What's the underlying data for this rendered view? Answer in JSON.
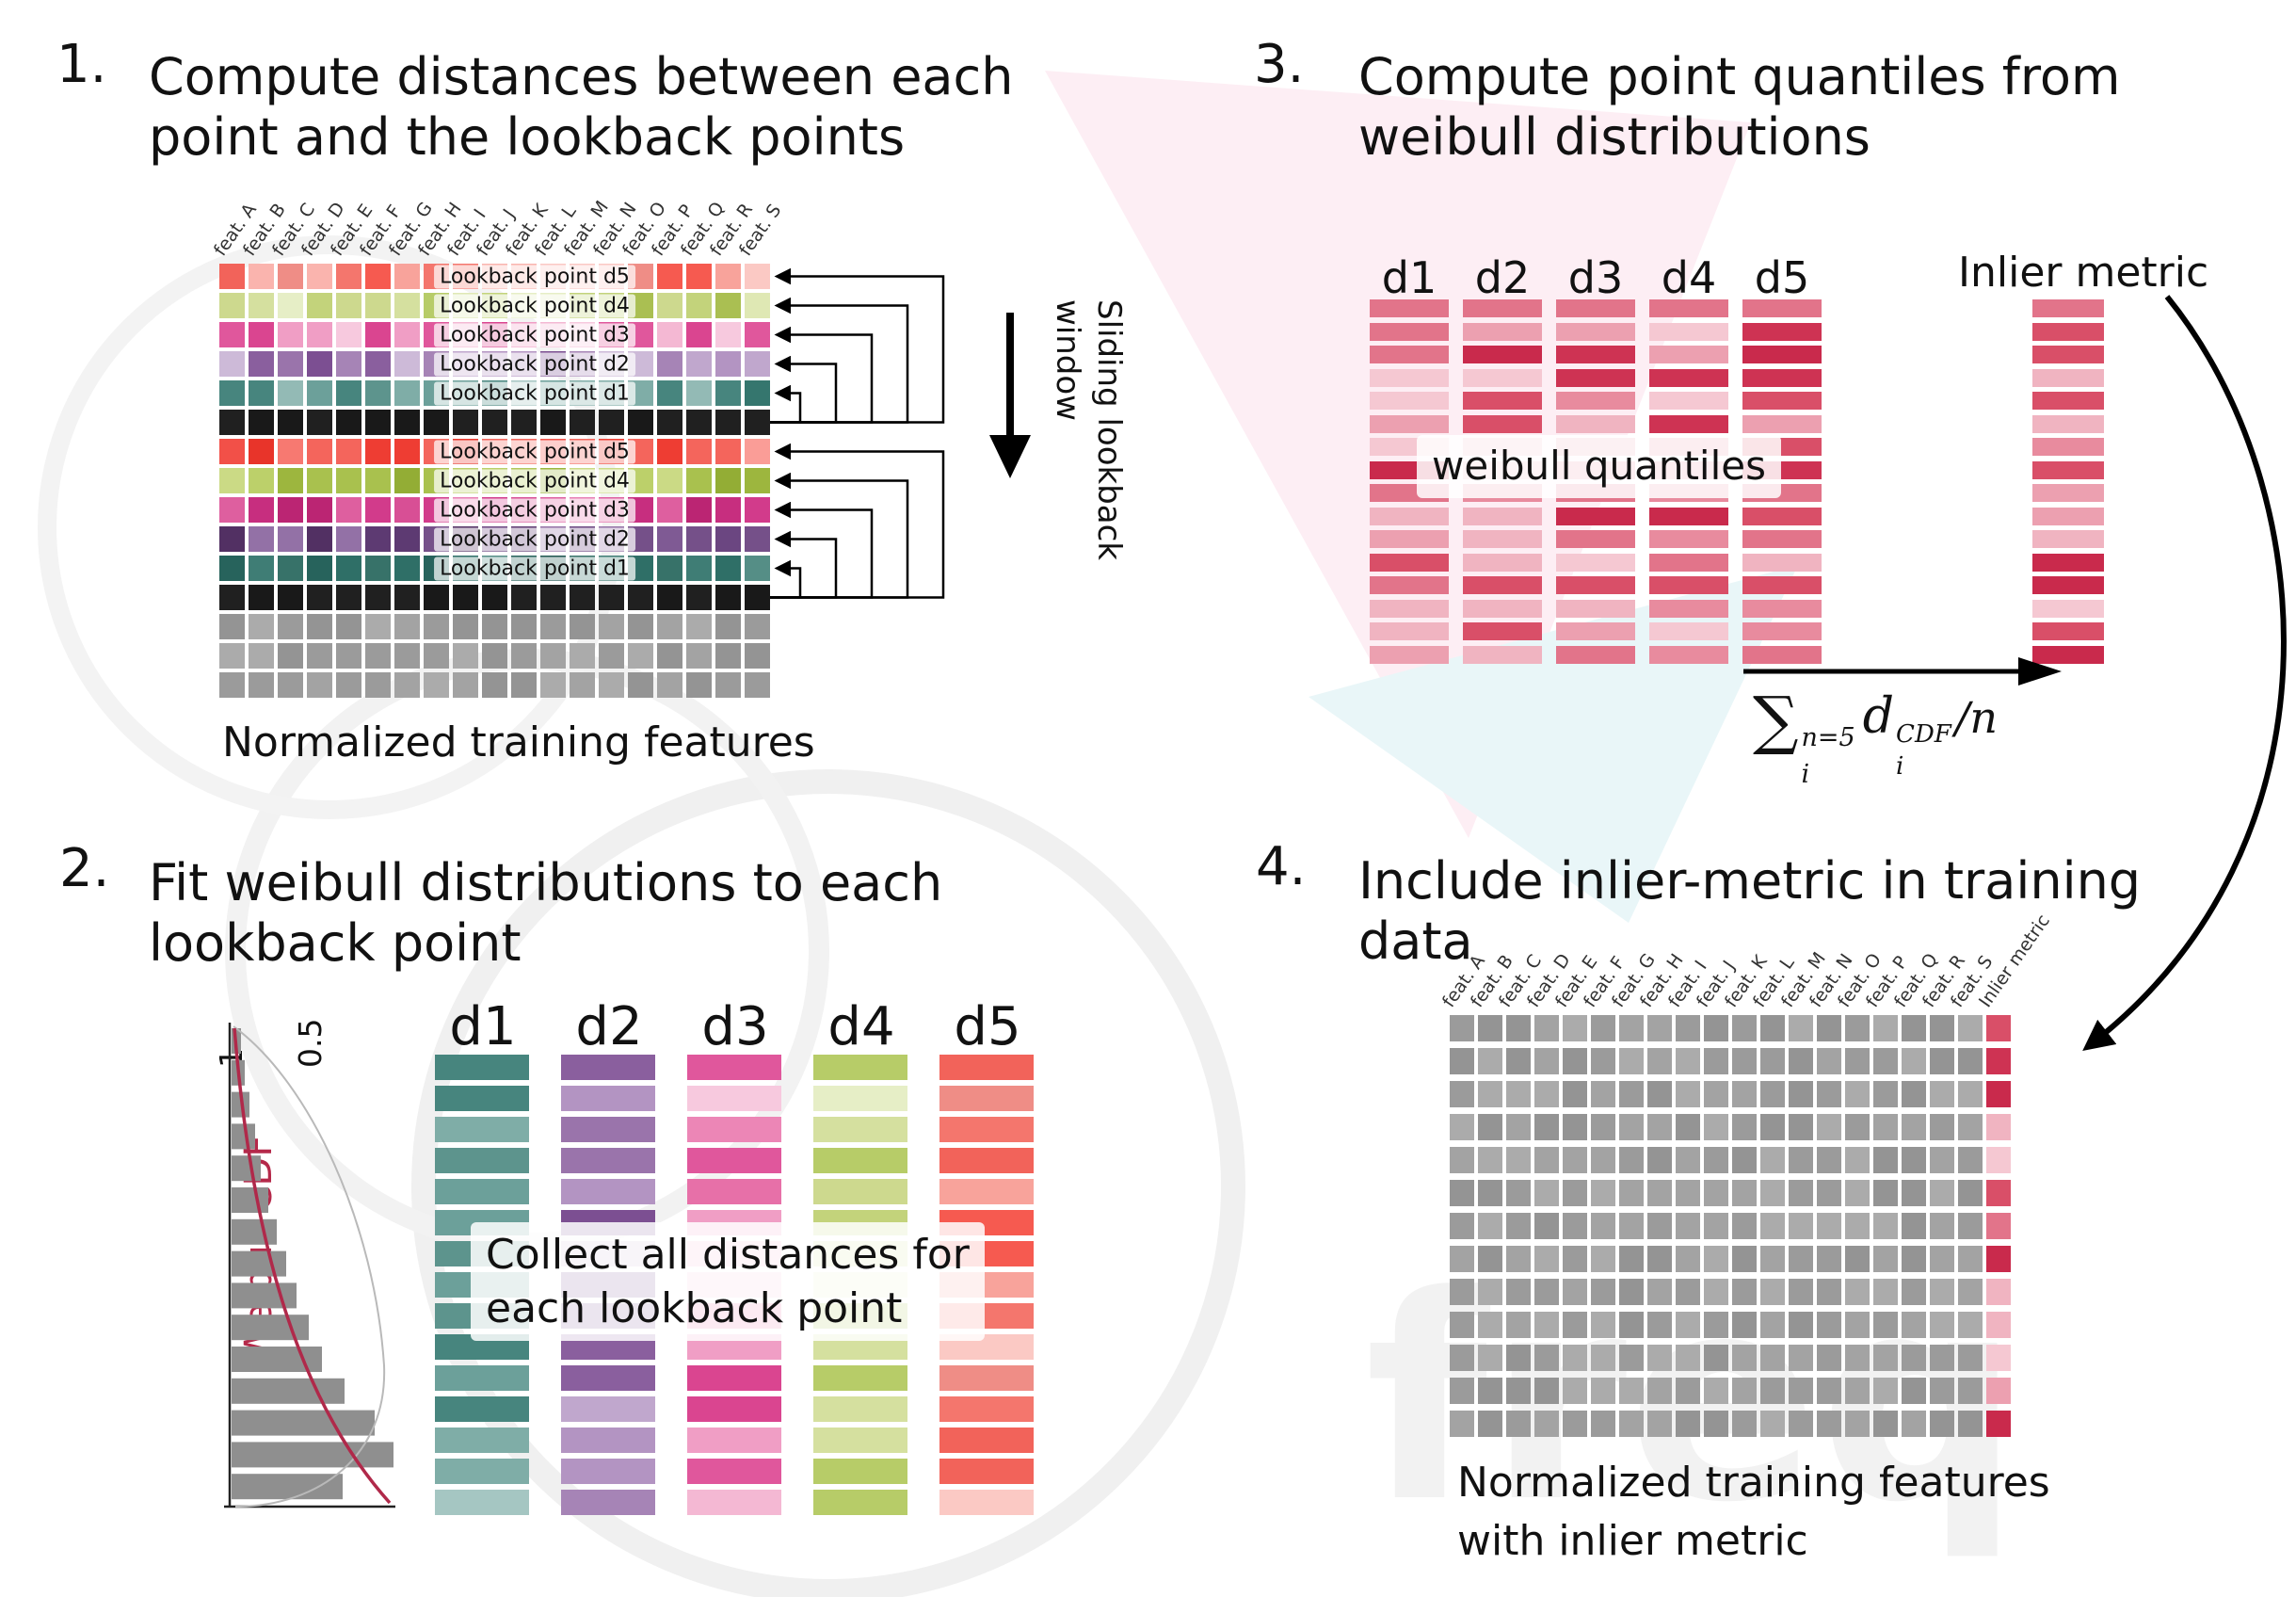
{
  "features": [
    "feat. A",
    "feat. B",
    "feat. C",
    "feat. D",
    "feat. E",
    "feat. F",
    "feat. G",
    "feat. H",
    "feat. I",
    "feat. J",
    "feat. K",
    "feat. L",
    "feat. M",
    "feat. N",
    "feat. O",
    "feat. P",
    "feat. Q",
    "feat. R",
    "feat. S"
  ],
  "d_labels": [
    "d1",
    "d2",
    "d3",
    "d4",
    "d5"
  ],
  "palettes": {
    "d1": [
      "#5d948d",
      "#47857e",
      "#7fada7",
      "#a5c6c2",
      "#35766e",
      "#6ca09a",
      "#93bab5"
    ],
    "d2": [
      "#9a74ab",
      "#8a5f9e",
      "#b394c2",
      "#cdbad8",
      "#7c4f92",
      "#a684b6",
      "#c0a7cd"
    ],
    "d3": [
      "#e770a8",
      "#e0579c",
      "#f09ec5",
      "#f7c9de",
      "#da4590",
      "#ec86b6",
      "#f4b8d3"
    ],
    "d4": [
      "#c3d37b",
      "#b7cc68",
      "#d5e09f",
      "#e6eec6",
      "#aabf52",
      "#cdd98e",
      "#dfe8b4"
    ],
    "d5": [
      "#f4766d",
      "#f2635a",
      "#f8a39b",
      "#fbc9c4",
      "#ef8d86",
      "#f65a50",
      "#fab4ae"
    ],
    "d1b": [
      "#2f6f67",
      "#27635c",
      "#3f7d75",
      "#558e86",
      "#1f5650",
      "#377269"
    ],
    "d2b": [
      "#6b4681",
      "#5d3a72",
      "#7f5a94",
      "#9371a6",
      "#523063",
      "#755089"
    ],
    "d3b": [
      "#d23b8b",
      "#c72e7f",
      "#de5f9f",
      "#e87fb4",
      "#bb2573",
      "#d84f95"
    ],
    "d4b": [
      "#a9c14e",
      "#9db63e",
      "#bcd06a",
      "#cbda85",
      "#93ad35",
      "#b3c85c"
    ],
    "d5b": [
      "#f25048",
      "#ee3d33",
      "#f77971",
      "#fa9d97",
      "#e8342a",
      "#f4655c"
    ],
    "black": [
      "#191919",
      "#202020"
    ],
    "gray": [
      "#a3a3a3",
      "#9b9b9b",
      "#ababab",
      "#949494"
    ],
    "red": [
      "#d94f68",
      "#e2748a",
      "#eca0b0",
      "#f5c8d2",
      "#ce3353",
      "#e88b9e",
      "#f0b4c1",
      "#c92a4c"
    ]
  },
  "panel1": {
    "step": "1.",
    "title_lines": [
      "Compute distances between each",
      "point and the lookback points"
    ],
    "caption": "Normalized training features",
    "sliding_lines": [
      "Sliding lookback",
      "window"
    ],
    "rows": [
      {
        "family": "d5",
        "label": "Lookback point d5"
      },
      {
        "family": "d4",
        "label": "Lookback point d4"
      },
      {
        "family": "d3",
        "label": "Lookback point d3"
      },
      {
        "family": "d2",
        "label": "Lookback point d2"
      },
      {
        "family": "d1",
        "label": "Lookback point d1"
      },
      {
        "family": "black"
      },
      {
        "family": "d5b",
        "label": "Lookback point d5"
      },
      {
        "family": "d4b",
        "label": "Lookback point d4"
      },
      {
        "family": "d3b",
        "label": "Lookback point d3"
      },
      {
        "family": "d2b",
        "label": "Lookback point d2"
      },
      {
        "family": "d1b",
        "label": "Lookback point d1"
      },
      {
        "family": "black"
      },
      {
        "family": "gray"
      },
      {
        "family": "gray"
      },
      {
        "family": "gray"
      }
    ]
  },
  "panel2": {
    "step": "2.",
    "title_lines": [
      "Fit weibull distributions to each",
      "lookback point"
    ],
    "overlay_lines": [
      "Collect all distances for",
      "each lookback point"
    ],
    "bars_per_column": 15,
    "chart": {
      "type": "bar",
      "orientation": "horizontal",
      "ylabel": "Weibull CDF",
      "ticks": [
        "1",
        "0.5"
      ],
      "bar_lengths": [
        10,
        14,
        19,
        25,
        31,
        39,
        48,
        58,
        69,
        82,
        96,
        120,
        152,
        172,
        118
      ]
    }
  },
  "panel3": {
    "step": "3.",
    "title_lines": [
      "Compute point quantiles from",
      "weibull distributions"
    ],
    "overlay": "weibull quantiles",
    "inlier_label": "Inlier metric",
    "bars_per_column": 16,
    "formula": {
      "sum": "∑",
      "sum_sup": "n=5",
      "sum_sub": "i",
      "d": "d",
      "d_sup": "CDF",
      "d_sub": "i",
      "tail": "/n"
    }
  },
  "panel4": {
    "step": "4.",
    "title_lines": [
      "Include inlier-metric in training",
      "data"
    ],
    "inlier_header": "Inlier metric",
    "caption_lines": [
      "Normalized training features",
      "with inlier metric"
    ],
    "row_count": 13
  },
  "watermark_text": "freq"
}
